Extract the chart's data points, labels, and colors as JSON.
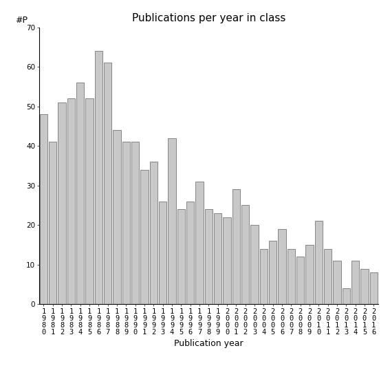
{
  "title": "Publications per year in class",
  "xlabel": "Publication year",
  "ylabel": "#P",
  "years": [
    "1980",
    "1981",
    "1982",
    "1983",
    "1984",
    "1985",
    "1986",
    "1987",
    "1988",
    "1989",
    "1990",
    "1991",
    "1992",
    "1993",
    "1994",
    "1995",
    "1996",
    "1997",
    "1998",
    "1999",
    "2000",
    "2001",
    "2002",
    "2003",
    "2004",
    "2005",
    "2006",
    "2007",
    "2008",
    "2009",
    "2010",
    "2011",
    "2012",
    "2013",
    "2014",
    "2015",
    "2016"
  ],
  "values": [
    48,
    41,
    51,
    52,
    56,
    52,
    64,
    61,
    44,
    41,
    41,
    34,
    36,
    26,
    42,
    24,
    26,
    31,
    24,
    23,
    22,
    29,
    25,
    20,
    14,
    16,
    19,
    14,
    12,
    15,
    21,
    14,
    11,
    4,
    11,
    9,
    8
  ],
  "bar_color": "#c8c8c8",
  "bar_edge_color": "#606060",
  "ylim": [
    0,
    70
  ],
  "yticks": [
    0,
    10,
    20,
    30,
    40,
    50,
    60,
    70
  ],
  "background_color": "#ffffff",
  "title_fontsize": 11,
  "label_fontsize": 9,
  "tick_fontsize": 7.5
}
